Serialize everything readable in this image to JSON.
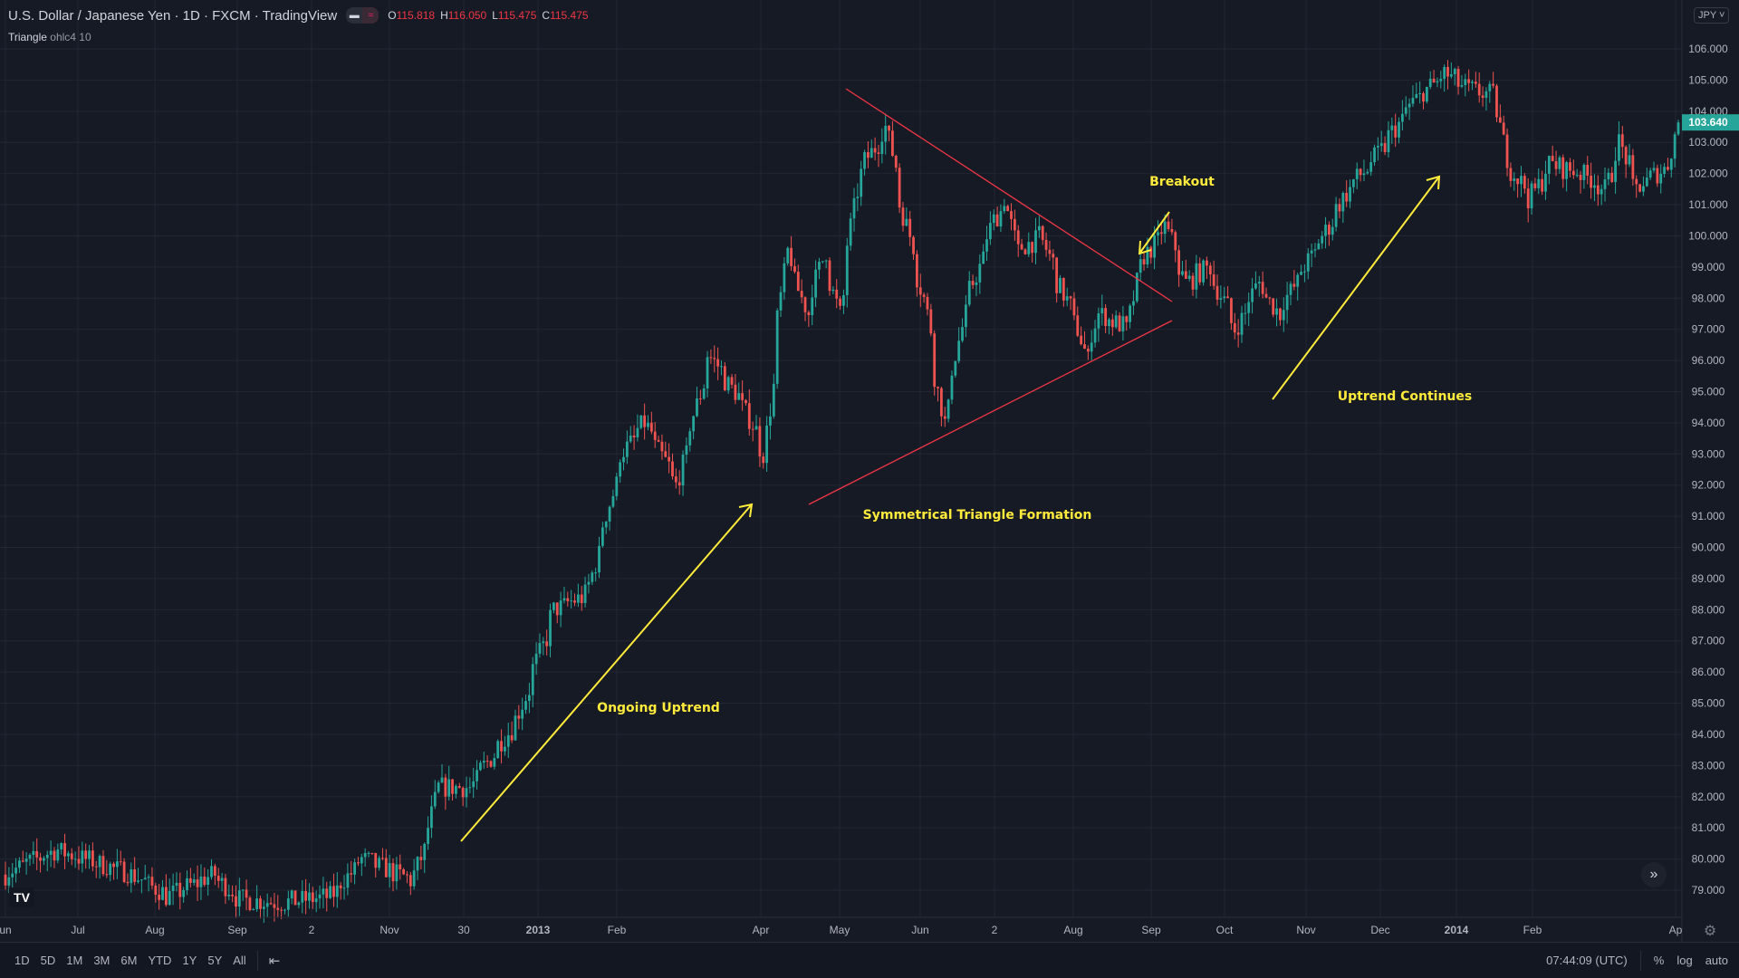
{
  "header": {
    "title": "U.S. Dollar / Japanese Yen · 1D · FXCM · TradingView",
    "open_label": "O",
    "open": "115.818",
    "high_label": "H",
    "high": "116.050",
    "low_label": "L",
    "low": "115.475",
    "close_label": "C",
    "close": "115.475"
  },
  "indicator": {
    "name": "Triangle",
    "params": "ohlc4 10"
  },
  "currency_button": "JPY",
  "bottom_bar": {
    "ranges": [
      "1D",
      "5D",
      "1M",
      "3M",
      "6M",
      "YTD",
      "1Y",
      "5Y",
      "All"
    ],
    "clock": "07:44:09 (UTC)",
    "percent": "%",
    "log": "log",
    "auto": "auto"
  },
  "annotations": {
    "uptrend": "Ongoing Uptrend",
    "triangle": "Symmetrical Triangle Formation",
    "breakout": "Breakout",
    "continues": "Uptrend Continues"
  },
  "colors": {
    "up": "#26a69a",
    "down": "#ef5350",
    "trendline": "#f23645",
    "arrow": "#ffeb3b",
    "background": "#161a25",
    "grid": "#232632"
  },
  "chart_data": {
    "type": "candlestick",
    "symbol": "USDJPY",
    "interval": "1D",
    "ylim": [
      78.3,
      107
    ],
    "yticks": [
      "79.000",
      "80.000",
      "81.000",
      "82.000",
      "83.000",
      "84.000",
      "85.000",
      "86.000",
      "87.000",
      "88.000",
      "89.000",
      "90.000",
      "91.000",
      "92.000",
      "93.000",
      "94.000",
      "95.000",
      "96.000",
      "97.000",
      "98.000",
      "99.000",
      "100.000",
      "101.000",
      "102.000",
      "103.000",
      "104.000",
      "105.000",
      "106.000"
    ],
    "last_price": "103.640",
    "xticks": [
      "un",
      "Jul",
      "Aug",
      "Sep",
      "2",
      "Nov",
      "30",
      "2013",
      "Feb",
      "Apr",
      "May",
      "Jun",
      "2",
      "Aug",
      "Sep",
      "Oct",
      "Nov",
      "Dec",
      "2014",
      "Feb",
      "Ap"
    ],
    "close_path": [
      [
        "2012-06-01",
        79.5
      ],
      [
        "2012-06-22",
        80.3
      ],
      [
        "2012-07-23",
        79.5
      ],
      [
        "2012-08-06",
        78.8
      ],
      [
        "2012-08-24",
        79.5
      ],
      [
        "2012-09-04",
        78.7
      ],
      [
        "2012-09-21",
        78.6
      ],
      [
        "2012-10-10",
        78.8
      ],
      [
        "2012-10-23",
        80.0
      ],
      [
        "2012-11-12",
        79.3
      ],
      [
        "2012-11-19",
        81.0
      ],
      [
        "2012-11-22",
        82.3
      ],
      [
        "2012-12-05",
        82.3
      ],
      [
        "2012-12-24",
        84.5
      ],
      [
        "2013-01-08",
        88.0
      ],
      [
        "2013-01-21",
        88.5
      ],
      [
        "2013-02-04",
        93.0
      ],
      [
        "2013-02-13",
        94.0
      ],
      [
        "2013-02-26",
        92.0
      ],
      [
        "2013-03-11",
        96.2
      ],
      [
        "2013-03-25",
        94.5
      ],
      [
        "2013-04-02",
        93.0
      ],
      [
        "2013-04-11",
        99.5
      ],
      [
        "2013-04-19",
        97.5
      ],
      [
        "2013-04-26",
        99.5
      ],
      [
        "2013-05-02",
        97.5
      ],
      [
        "2013-05-10",
        102.0
      ],
      [
        "2013-05-21",
        103.5
      ],
      [
        "2013-05-27",
        101.0
      ],
      [
        "2013-06-05",
        98.0
      ],
      [
        "2013-06-11",
        95.0
      ],
      [
        "2013-06-13",
        94.0
      ],
      [
        "2013-06-21",
        97.5
      ],
      [
        "2013-07-03",
        100.5
      ],
      [
        "2013-07-08",
        101.2
      ],
      [
        "2013-07-12",
        99.5
      ],
      [
        "2013-07-22",
        100.0
      ],
      [
        "2013-07-29",
        98.5
      ],
      [
        "2013-08-06",
        97.0
      ],
      [
        "2013-08-09",
        96.0
      ],
      [
        "2013-08-14",
        97.5
      ],
      [
        "2013-08-26",
        97.0
      ],
      [
        "2013-08-30",
        99.0
      ],
      [
        "2013-09-10",
        100.3
      ],
      [
        "2013-09-18",
        98.5
      ],
      [
        "2013-09-27",
        99.0
      ],
      [
        "2013-10-08",
        97.0
      ],
      [
        "2013-10-17",
        98.5
      ],
      [
        "2013-10-25",
        97.5
      ],
      [
        "2013-11-01",
        98.5
      ],
      [
        "2013-11-12",
        100.0
      ],
      [
        "2013-11-22",
        101.5
      ],
      [
        "2013-12-03",
        102.5
      ],
      [
        "2013-12-18",
        104.3
      ],
      [
        "2013-12-31",
        105.2
      ],
      [
        "2014-01-09",
        104.7
      ],
      [
        "2014-01-20",
        104.5
      ],
      [
        "2014-01-24",
        102.5
      ],
      [
        "2014-02-03",
        101.2
      ],
      [
        "2014-02-11",
        102.3
      ],
      [
        "2014-02-24",
        102.0
      ],
      [
        "2014-03-05",
        101.5
      ],
      [
        "2014-03-11",
        103.0
      ],
      [
        "2014-03-17",
        101.5
      ],
      [
        "2014-03-31",
        102.3
      ],
      [
        "2014-04-03",
        103.64
      ]
    ]
  }
}
